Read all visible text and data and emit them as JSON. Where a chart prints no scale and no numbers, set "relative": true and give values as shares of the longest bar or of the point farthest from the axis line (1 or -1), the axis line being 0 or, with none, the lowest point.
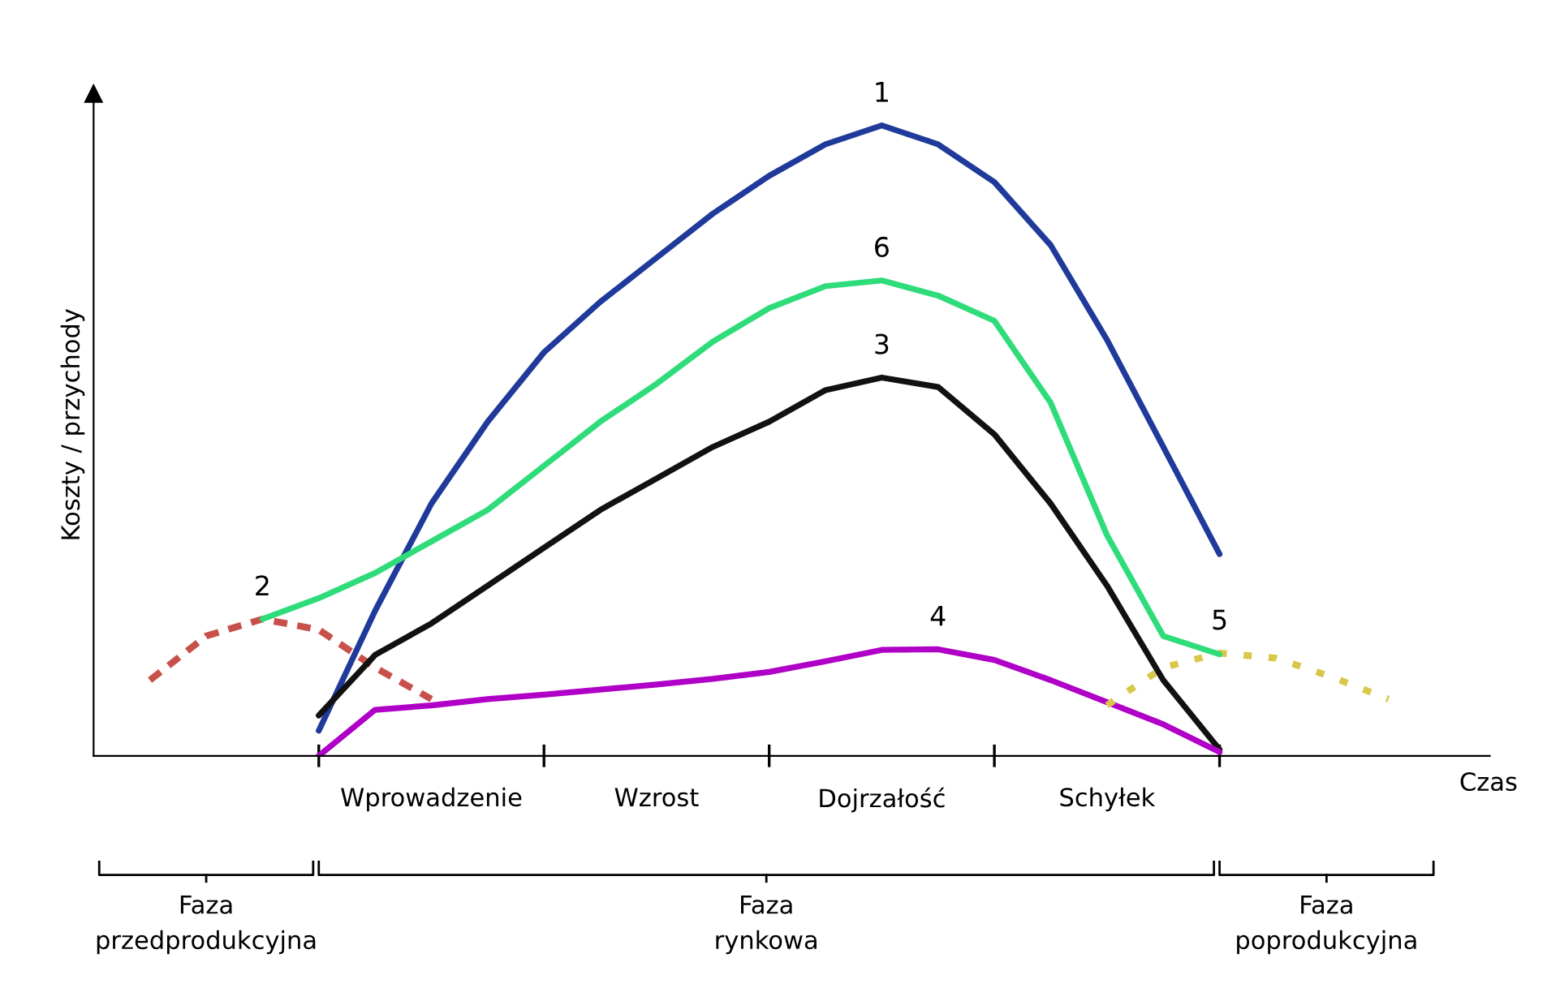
{
  "chart_data": {
    "type": "line",
    "relative": true,
    "ylabel": "Koszty / przychody",
    "xlabel": "Czas",
    "categories": [
      null,
      null,
      null,
      null,
      null,
      null,
      "Wprowadzenie",
      null,
      null,
      null,
      "Wzrost",
      null,
      null,
      null,
      "Dojrzałość",
      null,
      null,
      null,
      "Schyłek",
      null,
      null,
      null,
      null,
      null,
      null
    ],
    "grid": false,
    "legend": false,
    "marker": "none",
    "annotations": [
      "Faza\nprzedprodukcyjna",
      "Faza\nrynkowa",
      "Faza\npoprodukcyjna"
    ],
    "series": [
      {
        "name": "1",
        "color": "#1f3a9a",
        "values": [
          null,
          null,
          null,
          null,
          0.04,
          0.23,
          0.4,
          0.53,
          0.64,
          0.72,
          0.79,
          0.86,
          0.92,
          0.97,
          1.0,
          0.97,
          0.91,
          0.81,
          0.66,
          0.49,
          0.32,
          null,
          null,
          null,
          null
        ]
      },
      {
        "name": "2",
        "color": "#c8504a",
        "line_style": "dashed",
        "values": [
          null,
          0.12,
          0.19,
          0.217,
          0.2,
          0.14,
          0.09,
          null,
          null,
          null,
          null,
          null,
          null,
          null,
          null,
          null,
          null,
          null,
          null,
          null,
          null,
          null,
          null,
          null,
          null
        ]
      },
      {
        "name": "3",
        "color": "#111111",
        "values": [
          null,
          null,
          null,
          null,
          0.064,
          0.16,
          0.21,
          0.27,
          0.33,
          0.39,
          0.44,
          0.49,
          0.53,
          0.58,
          0.6,
          0.585,
          0.51,
          0.4,
          0.27,
          0.12,
          0.01,
          null,
          null,
          null,
          null
        ]
      },
      {
        "name": "4",
        "color": "#b000c8",
        "values": [
          null,
          null,
          null,
          null,
          0.0,
          0.073,
          0.08,
          0.09,
          0.097,
          0.105,
          0.113,
          0.122,
          0.133,
          0.15,
          0.168,
          0.169,
          0.152,
          0.12,
          0.085,
          0.05,
          0.006,
          null,
          null,
          null,
          null
        ]
      },
      {
        "name": "5",
        "color": "#d8c84a",
        "line_style": "dotted",
        "values": [
          null,
          null,
          null,
          null,
          null,
          null,
          null,
          null,
          null,
          null,
          null,
          null,
          null,
          null,
          null,
          null,
          null,
          null,
          0.08,
          0.14,
          0.163,
          0.155,
          0.125,
          0.09,
          null
        ]
      },
      {
        "name": "6",
        "color": "#2edc7a",
        "values": [
          null,
          null,
          null,
          0.217,
          0.25,
          0.29,
          0.34,
          0.39,
          0.46,
          0.53,
          0.59,
          0.657,
          0.71,
          0.745,
          0.754,
          0.73,
          0.69,
          0.56,
          0.35,
          0.19,
          0.161,
          null,
          null,
          null,
          null
        ]
      }
    ]
  }
}
